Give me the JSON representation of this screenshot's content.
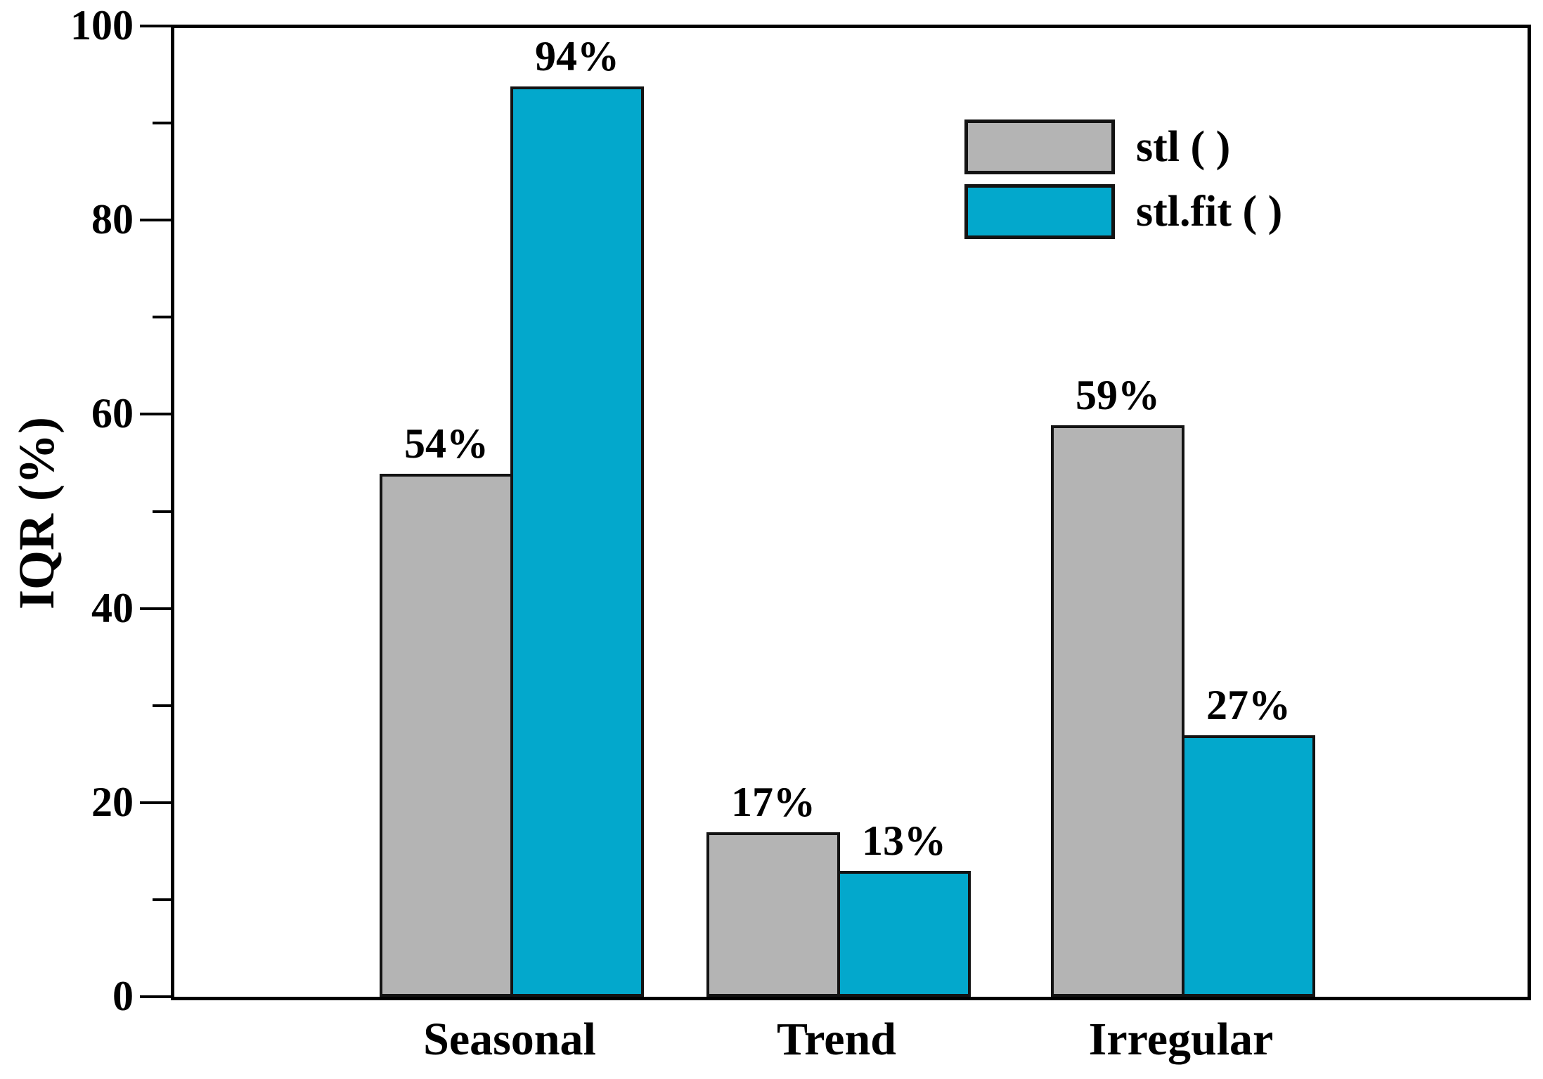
{
  "chart_data": {
    "type": "bar",
    "title": "",
    "xlabel": "",
    "ylabel": "IQR (%)",
    "ylim": [
      0,
      100
    ],
    "grid": false,
    "legend_position": "top-right",
    "background_color": "#ffffff",
    "axis_color": "#000000",
    "bar_outline_color": "#131313",
    "categories": [
      "Seasonal",
      "Trend",
      "Irregular"
    ],
    "series": [
      {
        "name": "stl ( )",
        "color": "#b4b4b4",
        "values": [
          54,
          17,
          59
        ],
        "value_labels": [
          "54%",
          "17%",
          "59%"
        ]
      },
      {
        "name": "stl.fit ( )",
        "color": "#03a8cc",
        "values": [
          94,
          13,
          27
        ],
        "value_labels": [
          "94%",
          "13%",
          "27%"
        ]
      }
    ],
    "y_axis": {
      "major_ticks": [
        {
          "value": 0,
          "label": "0"
        },
        {
          "value": 20,
          "label": "20"
        },
        {
          "value": 40,
          "label": "40"
        },
        {
          "value": 60,
          "label": "60"
        },
        {
          "value": 80,
          "label": "80"
        },
        {
          "value": 100,
          "label": "100"
        }
      ],
      "minor_ticks": [
        10,
        30,
        50,
        70,
        90
      ]
    }
  }
}
